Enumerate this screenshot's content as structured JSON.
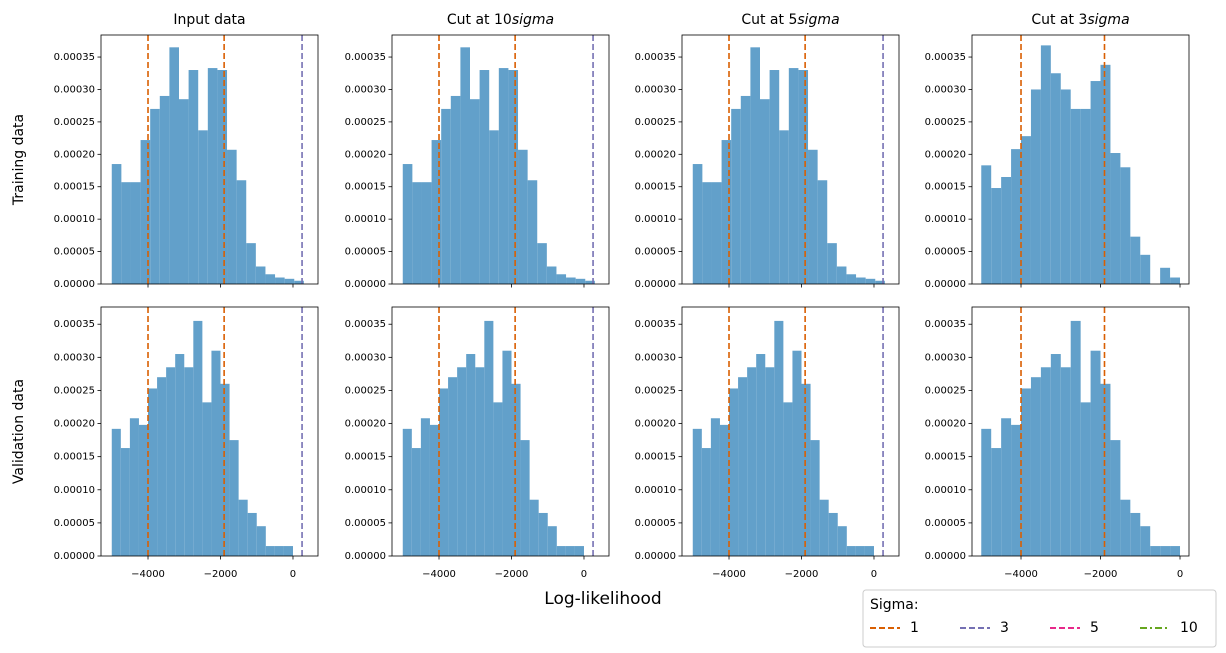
{
  "chart_data": [
    {
      "type": "histogram",
      "title": [
        {
          "text": "Input data"
        }
      ],
      "ylabel": "Training data",
      "color": "#62a0ca",
      "bins": [
        -5000,
        -4735,
        -4470,
        -4205,
        -3940,
        -3675,
        -3410,
        -3145,
        -2880,
        -2615,
        -2350,
        -2085,
        -1820,
        -1555,
        -1290,
        -1025,
        -760,
        -495,
        -230,
        35,
        300
      ],
      "values": [
        0.000185,
        0.000157,
        0.000157,
        0.000222,
        0.00027,
        0.00029,
        0.000365,
        0.000285,
        0.00033,
        0.000237,
        0.000333,
        0.00033,
        0.000207,
        0.00016,
        6.3e-05,
        2.7e-05,
        1.5e-05,
        1e-05,
        8e-06,
        5e-06
      ],
      "xlim": [
        -5297,
        690
      ],
      "ylim": [
        0,
        0.000384
      ],
      "show_xtick_labels": false,
      "xticks": [
        {
          "value": -4000,
          "label": "−4000"
        },
        {
          "value": -2000,
          "label": "−2000"
        },
        0
      ],
      "yticks": [
        {
          "value": 0,
          "label": "0.00000"
        },
        {
          "value": 5e-05,
          "label": "0.00005"
        },
        {
          "value": 0.0001,
          "label": "0.00010"
        },
        {
          "value": 0.00015,
          "label": "0.00015"
        },
        {
          "value": 0.0002,
          "label": "0.00020"
        },
        {
          "value": 0.00025,
          "label": "0.00025"
        },
        {
          "value": 0.0003,
          "label": "0.00030"
        },
        {
          "value": 0.00035,
          "label": "0.00035"
        }
      ],
      "vlines": [
        {
          "x": -4000,
          "color": "#d95f02"
        },
        {
          "x": -1900,
          "color": "#d95f02"
        },
        {
          "x": 250,
          "color": "#7570b3"
        }
      ]
    },
    {
      "type": "histogram",
      "title": [
        {
          "text": "Cut at 10"
        },
        {
          "text": "sigma",
          "italic": true
        }
      ],
      "color": "#62a0ca",
      "bins": [
        -5000,
        -4735,
        -4470,
        -4205,
        -3940,
        -3675,
        -3410,
        -3145,
        -2880,
        -2615,
        -2350,
        -2085,
        -1820,
        -1555,
        -1290,
        -1025,
        -760,
        -495,
        -230,
        35,
        300
      ],
      "values": [
        0.000185,
        0.000157,
        0.000157,
        0.000222,
        0.00027,
        0.00029,
        0.000365,
        0.000285,
        0.00033,
        0.000237,
        0.000333,
        0.00033,
        0.000207,
        0.00016,
        6.3e-05,
        2.7e-05,
        1.5e-05,
        1e-05,
        8e-06,
        5e-06
      ],
      "xlim": [
        -5297,
        690
      ],
      "ylim": [
        0,
        0.000384
      ],
      "show_xtick_labels": false,
      "xticks": [
        {
          "value": -4000,
          "label": "−4000"
        },
        {
          "value": -2000,
          "label": "−2000"
        },
        0
      ],
      "yticks": [
        {
          "value": 0,
          "label": "0.00000"
        },
        {
          "value": 5e-05,
          "label": "0.00005"
        },
        {
          "value": 0.0001,
          "label": "0.00010"
        },
        {
          "value": 0.00015,
          "label": "0.00015"
        },
        {
          "value": 0.0002,
          "label": "0.00020"
        },
        {
          "value": 0.00025,
          "label": "0.00025"
        },
        {
          "value": 0.0003,
          "label": "0.00030"
        },
        {
          "value": 0.00035,
          "label": "0.00035"
        }
      ],
      "vlines": [
        {
          "x": -4000,
          "color": "#d95f02"
        },
        {
          "x": -1900,
          "color": "#d95f02"
        },
        {
          "x": 250,
          "color": "#7570b3"
        }
      ]
    },
    {
      "type": "histogram",
      "title": [
        {
          "text": "Cut at 5"
        },
        {
          "text": "sigma",
          "italic": true
        }
      ],
      "color": "#62a0ca",
      "bins": [
        -5000,
        -4735,
        -4470,
        -4205,
        -3940,
        -3675,
        -3410,
        -3145,
        -2880,
        -2615,
        -2350,
        -2085,
        -1820,
        -1555,
        -1290,
        -1025,
        -760,
        -495,
        -230,
        35,
        300
      ],
      "values": [
        0.000185,
        0.000157,
        0.000157,
        0.000222,
        0.00027,
        0.00029,
        0.000365,
        0.000285,
        0.00033,
        0.000237,
        0.000333,
        0.00033,
        0.000207,
        0.00016,
        6.3e-05,
        2.7e-05,
        1.5e-05,
        1e-05,
        8e-06,
        5e-06
      ],
      "xlim": [
        -5297,
        690
      ],
      "ylim": [
        0,
        0.000384
      ],
      "show_xtick_labels": false,
      "xticks": [
        {
          "value": -4000,
          "label": "−4000"
        },
        {
          "value": -2000,
          "label": "−2000"
        },
        0
      ],
      "yticks": [
        {
          "value": 0,
          "label": "0.00000"
        },
        {
          "value": 5e-05,
          "label": "0.00005"
        },
        {
          "value": 0.0001,
          "label": "0.00010"
        },
        {
          "value": 0.00015,
          "label": "0.00015"
        },
        {
          "value": 0.0002,
          "label": "0.00020"
        },
        {
          "value": 0.00025,
          "label": "0.00025"
        },
        {
          "value": 0.0003,
          "label": "0.00030"
        },
        {
          "value": 0.00035,
          "label": "0.00035"
        }
      ],
      "vlines": [
        {
          "x": -4000,
          "color": "#d95f02"
        },
        {
          "x": -1900,
          "color": "#d95f02"
        },
        {
          "x": 250,
          "color": "#7570b3"
        }
      ]
    },
    {
      "type": "histogram",
      "title": [
        {
          "text": "Cut at 3"
        },
        {
          "text": "sigma",
          "italic": true
        }
      ],
      "color": "#62a0ca",
      "bins": [
        -5000,
        -4750,
        -4500,
        -4250,
        -4000,
        -3750,
        -3500,
        -3250,
        -3000,
        -2750,
        -2500,
        -2250,
        -2000,
        -1750,
        -1500,
        -1250,
        -1000,
        -750,
        -500,
        -250,
        0
      ],
      "values": [
        0.000183,
        0.000148,
        0.000165,
        0.000208,
        0.000228,
        0.0003,
        0.000368,
        0.000325,
        0.0003,
        0.00027,
        0.00027,
        0.000313,
        0.000338,
        0.000202,
        0.00018,
        7.3e-05,
        4.5e-05,
        0,
        2.5e-05,
        1e-05
      ],
      "xlim": [
        -5233,
        226
      ],
      "ylim": [
        0,
        0.000384
      ],
      "show_xtick_labels": false,
      "xticks": [
        {
          "value": -4000,
          "label": "−4000"
        },
        {
          "value": -2000,
          "label": "−2000"
        },
        0
      ],
      "yticks": [
        {
          "value": 0,
          "label": "0.00000"
        },
        {
          "value": 5e-05,
          "label": "0.00005"
        },
        {
          "value": 0.0001,
          "label": "0.00010"
        },
        {
          "value": 0.00015,
          "label": "0.00015"
        },
        {
          "value": 0.0002,
          "label": "0.00020"
        },
        {
          "value": 0.00025,
          "label": "0.00025"
        },
        {
          "value": 0.0003,
          "label": "0.00030"
        },
        {
          "value": 0.00035,
          "label": "0.00035"
        }
      ],
      "vlines": [
        {
          "x": -4000,
          "color": "#d95f02"
        },
        {
          "x": -1900,
          "color": "#d95f02"
        }
      ]
    },
    {
      "type": "histogram",
      "ylabel": "Validation data",
      "color": "#62a0ca",
      "bins": [
        -5000,
        -4750,
        -4500,
        -4250,
        -4000,
        -3750,
        -3500,
        -3250,
        -3000,
        -2750,
        -2500,
        -2250,
        -2000,
        -1750,
        -1500,
        -1250,
        -1000,
        -750,
        -500,
        -250,
        0
      ],
      "values": [
        0.000192,
        0.000163,
        0.000208,
        0.000198,
        0.000253,
        0.00027,
        0.000285,
        0.000305,
        0.000285,
        0.000355,
        0.000232,
        0.00031,
        0.00026,
        0.000175,
        8.5e-05,
        6.5e-05,
        4.5e-05,
        1.5e-05,
        1.5e-05,
        1.5e-05
      ],
      "xlim": [
        -5297,
        690
      ],
      "ylim": [
        0,
        0.000376
      ],
      "show_xtick_labels": true,
      "xticks": [
        {
          "value": -4000,
          "label": "−4000"
        },
        {
          "value": -2000,
          "label": "−2000"
        },
        0
      ],
      "yticks": [
        {
          "value": 0,
          "label": "0.00000"
        },
        {
          "value": 5e-05,
          "label": "0.00005"
        },
        {
          "value": 0.0001,
          "label": "0.00010"
        },
        {
          "value": 0.00015,
          "label": "0.00015"
        },
        {
          "value": 0.0002,
          "label": "0.00020"
        },
        {
          "value": 0.00025,
          "label": "0.00025"
        },
        {
          "value": 0.0003,
          "label": "0.00030"
        },
        {
          "value": 0.00035,
          "label": "0.00035"
        }
      ],
      "vlines": [
        {
          "x": -4000,
          "color": "#d95f02"
        },
        {
          "x": -1900,
          "color": "#d95f02"
        },
        {
          "x": 250,
          "color": "#7570b3"
        }
      ]
    },
    {
      "type": "histogram",
      "color": "#62a0ca",
      "bins": [
        -5000,
        -4750,
        -4500,
        -4250,
        -4000,
        -3750,
        -3500,
        -3250,
        -3000,
        -2750,
        -2500,
        -2250,
        -2000,
        -1750,
        -1500,
        -1250,
        -1000,
        -750,
        -500,
        -250,
        0
      ],
      "values": [
        0.000192,
        0.000163,
        0.000208,
        0.000198,
        0.000253,
        0.00027,
        0.000285,
        0.000305,
        0.000285,
        0.000355,
        0.000232,
        0.00031,
        0.00026,
        0.000175,
        8.5e-05,
        6.5e-05,
        4.5e-05,
        1.5e-05,
        1.5e-05,
        1.5e-05
      ],
      "xlim": [
        -5297,
        690
      ],
      "ylim": [
        0,
        0.000376
      ],
      "show_xtick_labels": true,
      "xticks": [
        {
          "value": -4000,
          "label": "−4000"
        },
        {
          "value": -2000,
          "label": "−2000"
        },
        0
      ],
      "yticks": [
        {
          "value": 0,
          "label": "0.00000"
        },
        {
          "value": 5e-05,
          "label": "0.00005"
        },
        {
          "value": 0.0001,
          "label": "0.00010"
        },
        {
          "value": 0.00015,
          "label": "0.00015"
        },
        {
          "value": 0.0002,
          "label": "0.00020"
        },
        {
          "value": 0.00025,
          "label": "0.00025"
        },
        {
          "value": 0.0003,
          "label": "0.00030"
        },
        {
          "value": 0.00035,
          "label": "0.00035"
        }
      ],
      "vlines": [
        {
          "x": -4000,
          "color": "#d95f02"
        },
        {
          "x": -1900,
          "color": "#d95f02"
        },
        {
          "x": 250,
          "color": "#7570b3"
        }
      ]
    },
    {
      "type": "histogram",
      "color": "#62a0ca",
      "bins": [
        -5000,
        -4750,
        -4500,
        -4250,
        -4000,
        -3750,
        -3500,
        -3250,
        -3000,
        -2750,
        -2500,
        -2250,
        -2000,
        -1750,
        -1500,
        -1250,
        -1000,
        -750,
        -500,
        -250,
        0
      ],
      "values": [
        0.000192,
        0.000163,
        0.000208,
        0.000198,
        0.000253,
        0.00027,
        0.000285,
        0.000305,
        0.000285,
        0.000355,
        0.000232,
        0.00031,
        0.00026,
        0.000175,
        8.5e-05,
        6.5e-05,
        4.5e-05,
        1.5e-05,
        1.5e-05,
        1.5e-05
      ],
      "xlim": [
        -5297,
        690
      ],
      "ylim": [
        0,
        0.000376
      ],
      "show_xtick_labels": true,
      "xticks": [
        {
          "value": -4000,
          "label": "−4000"
        },
        {
          "value": -2000,
          "label": "−2000"
        },
        0
      ],
      "yticks": [
        {
          "value": 0,
          "label": "0.00000"
        },
        {
          "value": 5e-05,
          "label": "0.00005"
        },
        {
          "value": 0.0001,
          "label": "0.00010"
        },
        {
          "value": 0.00015,
          "label": "0.00015"
        },
        {
          "value": 0.0002,
          "label": "0.00020"
        },
        {
          "value": 0.00025,
          "label": "0.00025"
        },
        {
          "value": 0.0003,
          "label": "0.00030"
        },
        {
          "value": 0.00035,
          "label": "0.00035"
        }
      ],
      "vlines": [
        {
          "x": -4000,
          "color": "#d95f02"
        },
        {
          "x": -1900,
          "color": "#d95f02"
        },
        {
          "x": 250,
          "color": "#7570b3"
        }
      ]
    },
    {
      "type": "histogram",
      "color": "#62a0ca",
      "bins": [
        -5000,
        -4750,
        -4500,
        -4250,
        -4000,
        -3750,
        -3500,
        -3250,
        -3000,
        -2750,
        -2500,
        -2250,
        -2000,
        -1750,
        -1500,
        -1250,
        -1000,
        -750,
        -500,
        -250,
        0
      ],
      "values": [
        0.000192,
        0.000163,
        0.000208,
        0.000198,
        0.000253,
        0.00027,
        0.000285,
        0.000305,
        0.000285,
        0.000355,
        0.000232,
        0.00031,
        0.00026,
        0.000175,
        8.5e-05,
        6.5e-05,
        4.5e-05,
        1.5e-05,
        1.5e-05,
        1.5e-05
      ],
      "xlim": [
        -5233,
        226
      ],
      "ylim": [
        0,
        0.000376
      ],
      "show_xtick_labels": true,
      "xticks": [
        {
          "value": -4000,
          "label": "−4000"
        },
        {
          "value": -2000,
          "label": "−2000"
        },
        0
      ],
      "yticks": [
        {
          "value": 0,
          "label": "0.00000"
        },
        {
          "value": 5e-05,
          "label": "0.00005"
        },
        {
          "value": 0.0001,
          "label": "0.00010"
        },
        {
          "value": 0.00015,
          "label": "0.00015"
        },
        {
          "value": 0.0002,
          "label": "0.00020"
        },
        {
          "value": 0.00025,
          "label": "0.00025"
        },
        {
          "value": 0.0003,
          "label": "0.00030"
        },
        {
          "value": 0.00035,
          "label": "0.00035"
        }
      ],
      "vlines": [
        {
          "x": -4000,
          "color": "#d95f02"
        },
        {
          "x": -1900,
          "color": "#d95f02"
        }
      ]
    }
  ],
  "figure": {
    "xlabel": "Log-likelihood",
    "legend": {
      "title": "Sigma:",
      "entries": [
        {
          "label": "1",
          "color": "#d95f02",
          "dash": "6,3"
        },
        {
          "label": "3",
          "color": "#7570b3",
          "dash": "6,3"
        },
        {
          "label": "5",
          "color": "#e7298a",
          "dash": "6,3"
        },
        {
          "label": "10",
          "color": "#66a61e",
          "dash": "7,3,2,3"
        }
      ]
    }
  }
}
